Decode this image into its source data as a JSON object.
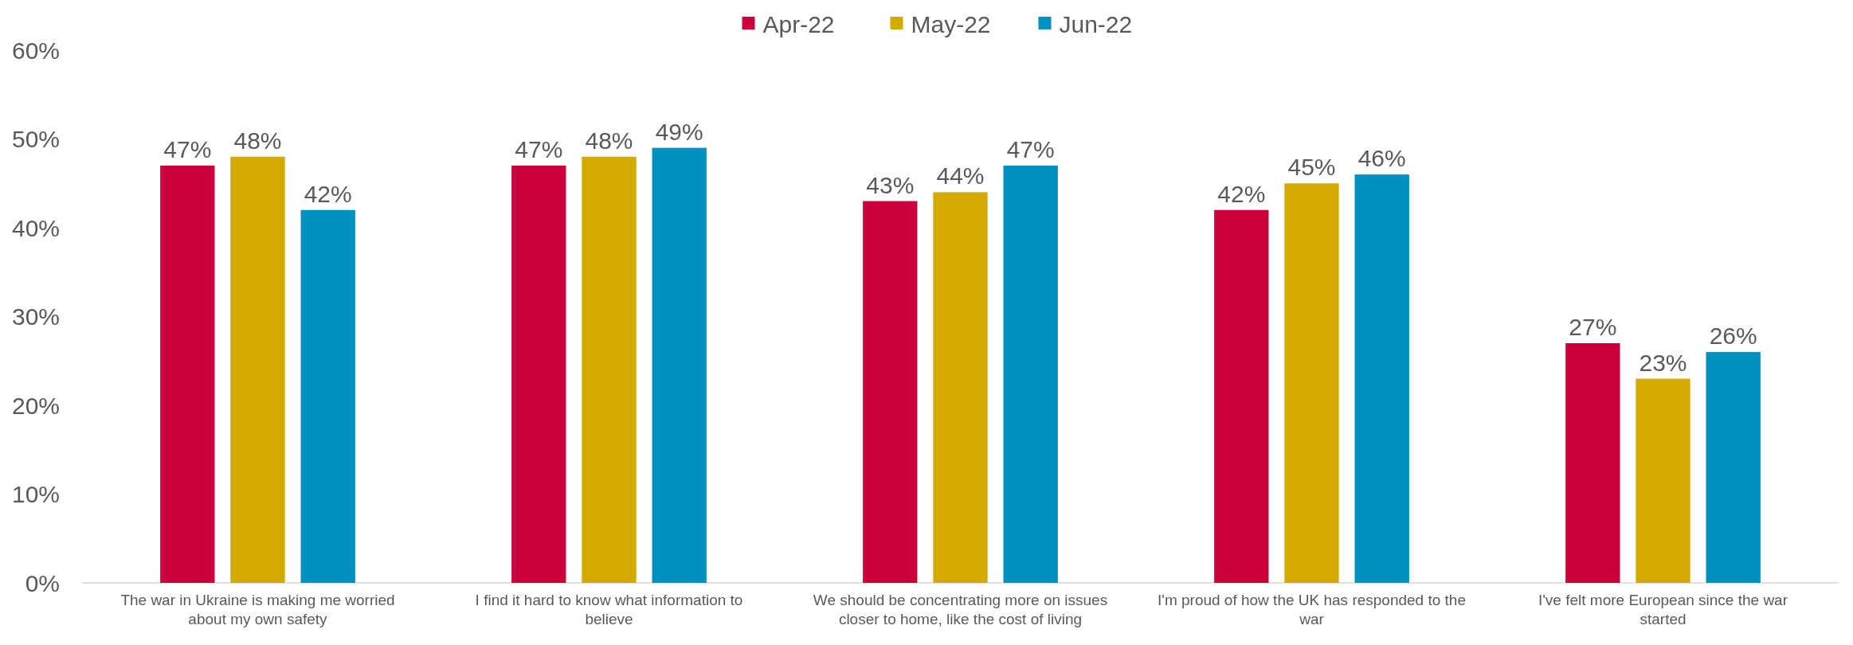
{
  "chart_data": {
    "type": "bar",
    "categories": [
      "The war in Ukraine is making me worried about my own safety",
      "I find it hard to know what information to believe",
      "We should be concentrating more on issues closer to home, like the cost of living",
      "I'm proud of how the UK has responded to the war",
      "I've felt more European since the war started"
    ],
    "series": [
      {
        "name": "Apr-22",
        "color": "#cc003d",
        "values": [
          47,
          47,
          43,
          42,
          27
        ],
        "value_labels": [
          "47%",
          "47%",
          "43%",
          "42%",
          "27%"
        ]
      },
      {
        "name": "May-22",
        "color": "#d4a900",
        "values": [
          48,
          48,
          44,
          45,
          23
        ],
        "value_labels": [
          "48%",
          "48%",
          "44%",
          "45%",
          "23%"
        ]
      },
      {
        "name": "Jun-22",
        "color": "#0090c0",
        "values": [
          42,
          49,
          47,
          46,
          26
        ],
        "value_labels": [
          "42%",
          "49%",
          "47%",
          "46%",
          "26%"
        ]
      }
    ],
    "ylim": [
      0,
      60
    ],
    "yticks": [
      {
        "value": 0,
        "label": "0%"
      },
      {
        "value": 10,
        "label": "10%"
      },
      {
        "value": 20,
        "label": "20%"
      },
      {
        "value": 30,
        "label": "30%"
      },
      {
        "value": 40,
        "label": "40%"
      },
      {
        "value": 50,
        "label": "50%"
      },
      {
        "value": 60,
        "label": "60%"
      }
    ],
    "legend": "top",
    "grid": false
  }
}
